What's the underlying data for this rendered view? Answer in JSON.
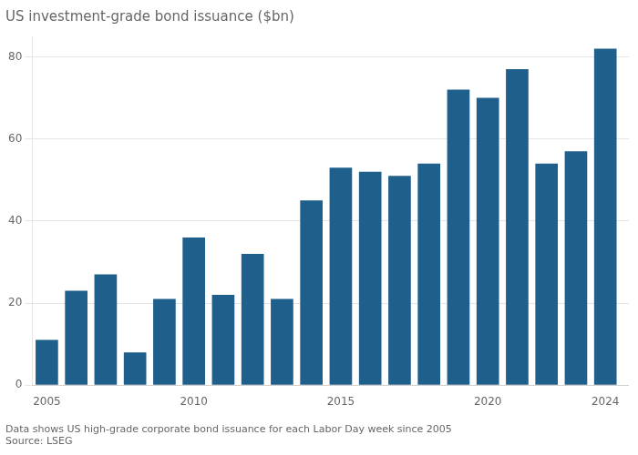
{
  "chart_data": {
    "type": "bar",
    "title": "US investment-grade bond issuance ($bn)",
    "x": [
      2005,
      2006,
      2007,
      2008,
      2009,
      2010,
      2011,
      2012,
      2013,
      2014,
      2015,
      2016,
      2017,
      2018,
      2019,
      2020,
      2021,
      2022,
      2023,
      2024
    ],
    "values": [
      11,
      23,
      27,
      8,
      21,
      36,
      22,
      32,
      21,
      45,
      53,
      52,
      51,
      54,
      72,
      70,
      77,
      54,
      57,
      82
    ],
    "color": "#1f5f8b",
    "xlim": [
      2004.5,
      2024.8
    ],
    "xticks": [
      2005,
      2010,
      2015,
      2020,
      2024
    ],
    "ylim": [
      0,
      85
    ],
    "yticks": [
      0,
      20,
      40,
      60,
      80
    ],
    "grid": true,
    "annotations": [
      "Data shows US high-grade corporate bond issuance for each Labor Day week since 2005",
      "Source: LSEG"
    ]
  }
}
